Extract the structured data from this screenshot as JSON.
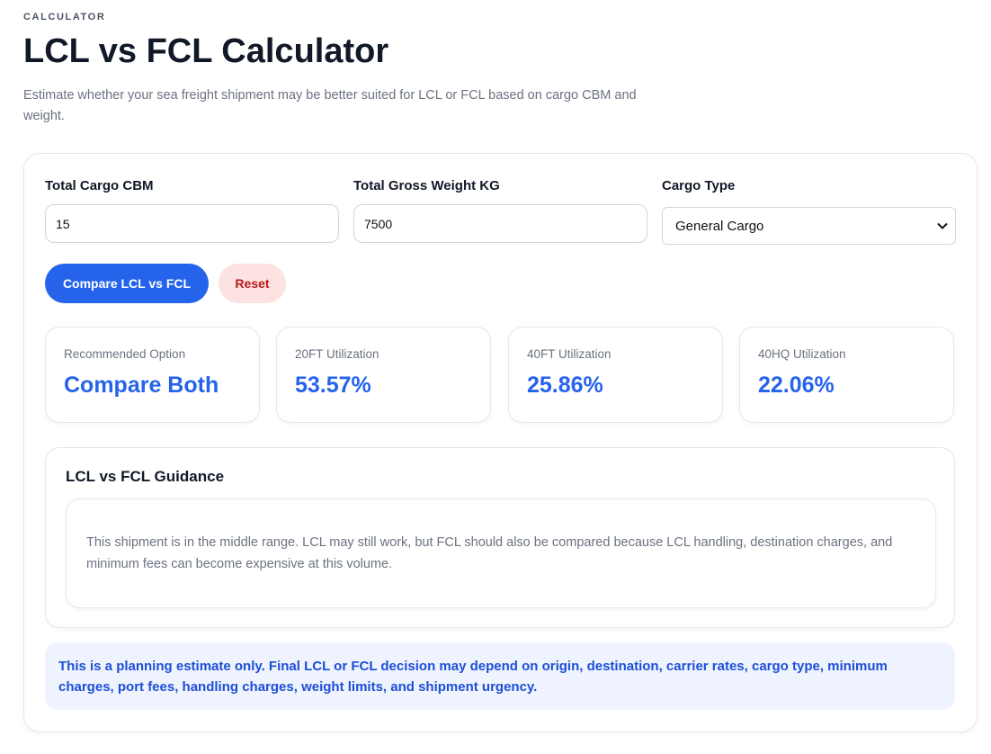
{
  "header": {
    "eyebrow": "CALCULATOR",
    "title": "LCL vs FCL Calculator",
    "description": "Estimate whether your sea freight shipment may be better suited for LCL or FCL based on cargo CBM and weight."
  },
  "form": {
    "fields": [
      {
        "label": "Total Cargo CBM",
        "value": "15"
      },
      {
        "label": "Total Gross Weight KG",
        "value": "7500"
      },
      {
        "label": "Cargo Type",
        "value": "General Cargo"
      }
    ],
    "buttons": [
      "Compare LCL vs FCL",
      "Reset"
    ]
  },
  "results": [
    {
      "label": "Recommended Option",
      "value": "Compare Both"
    },
    {
      "label": "20FT Utilization",
      "value": "53.57%"
    },
    {
      "label": "40FT Utilization",
      "value": "25.86%"
    },
    {
      "label": "40HQ Utilization",
      "value": "22.06%"
    }
  ],
  "guidance": {
    "title": "LCL vs FCL Guidance",
    "text": "This shipment is in the middle range. LCL may still work, but FCL should also be compared because LCL handling, destination charges, and minimum fees can become expensive at this volume."
  },
  "note": "This is a planning estimate only. Final LCL or FCL decision may depend on origin, destination, carrier rates, cargo type, minimum charges, port fees, handling charges, weight limits, and shipment urgency."
}
